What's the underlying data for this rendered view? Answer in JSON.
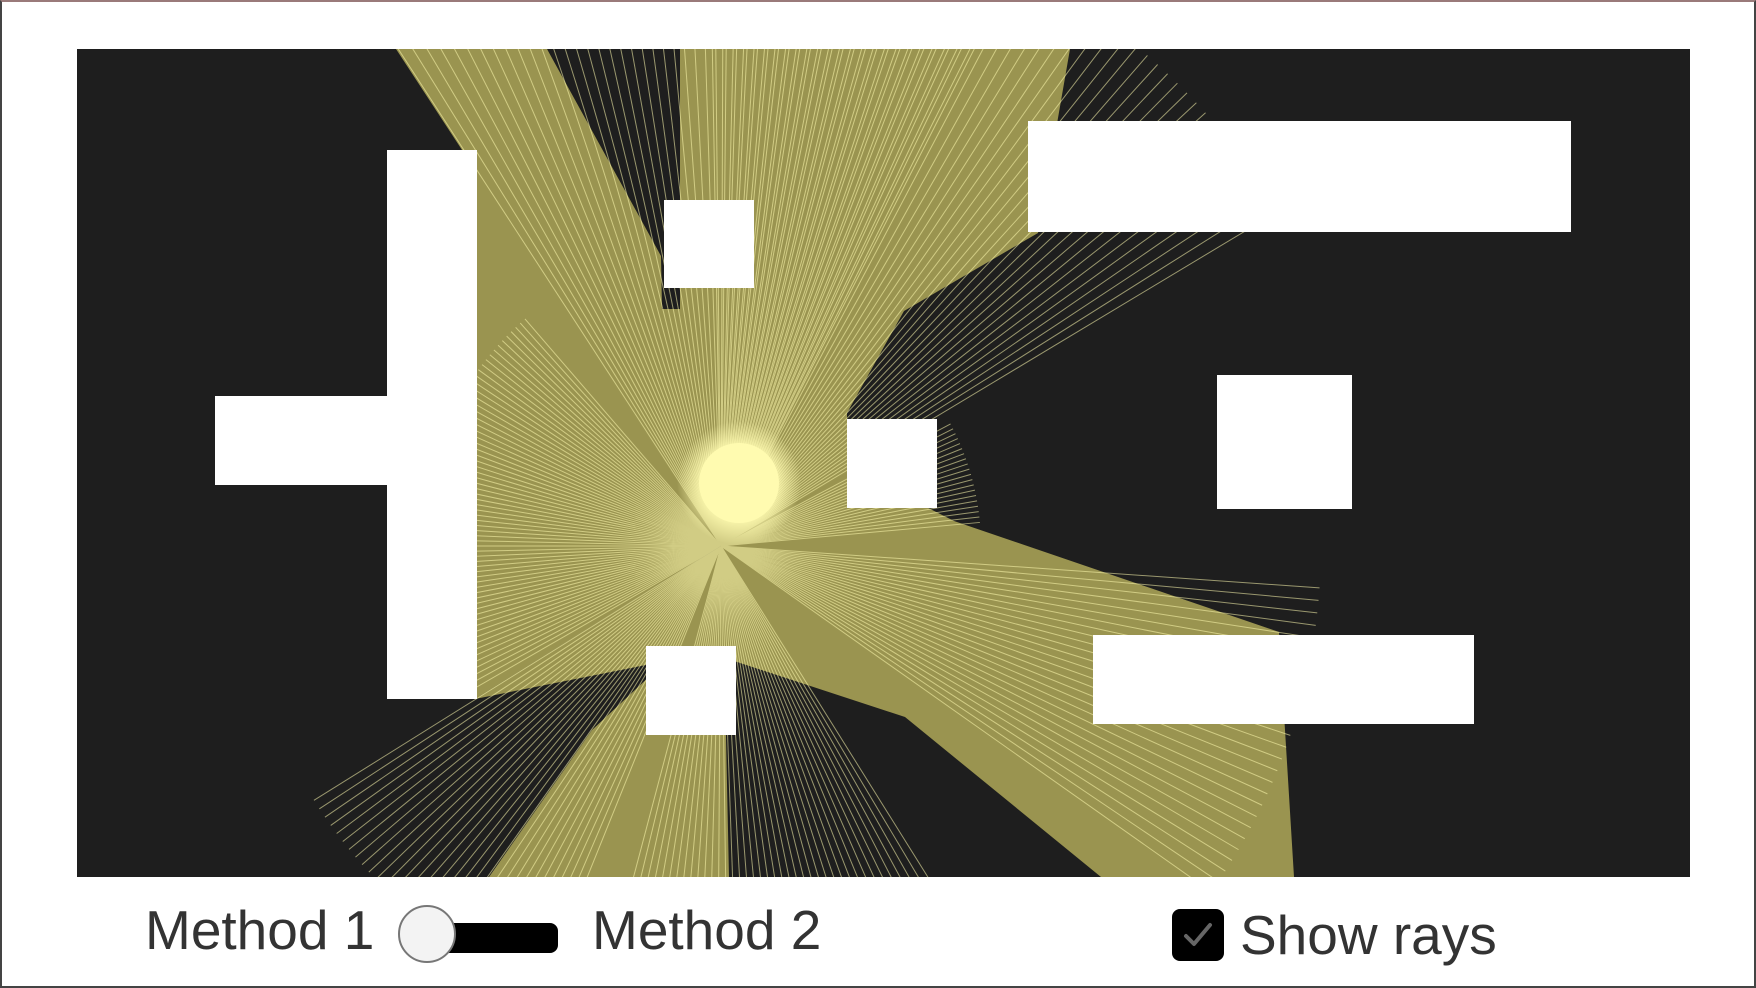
{
  "controls": {
    "method1_label": "Method 1",
    "method2_label": "Method 2",
    "method_toggle_state": "method-1",
    "show_rays_label": "Show rays",
    "show_rays_checked": true,
    "checkbox_icon": "checkmark-icon"
  },
  "colors": {
    "background": "#1e1e1e",
    "obstacle": "#ffffff",
    "light_wedge": "#9a9450",
    "ray": "#fffbb0",
    "light_core": "#fffbb0",
    "text": "#333333"
  }
}
